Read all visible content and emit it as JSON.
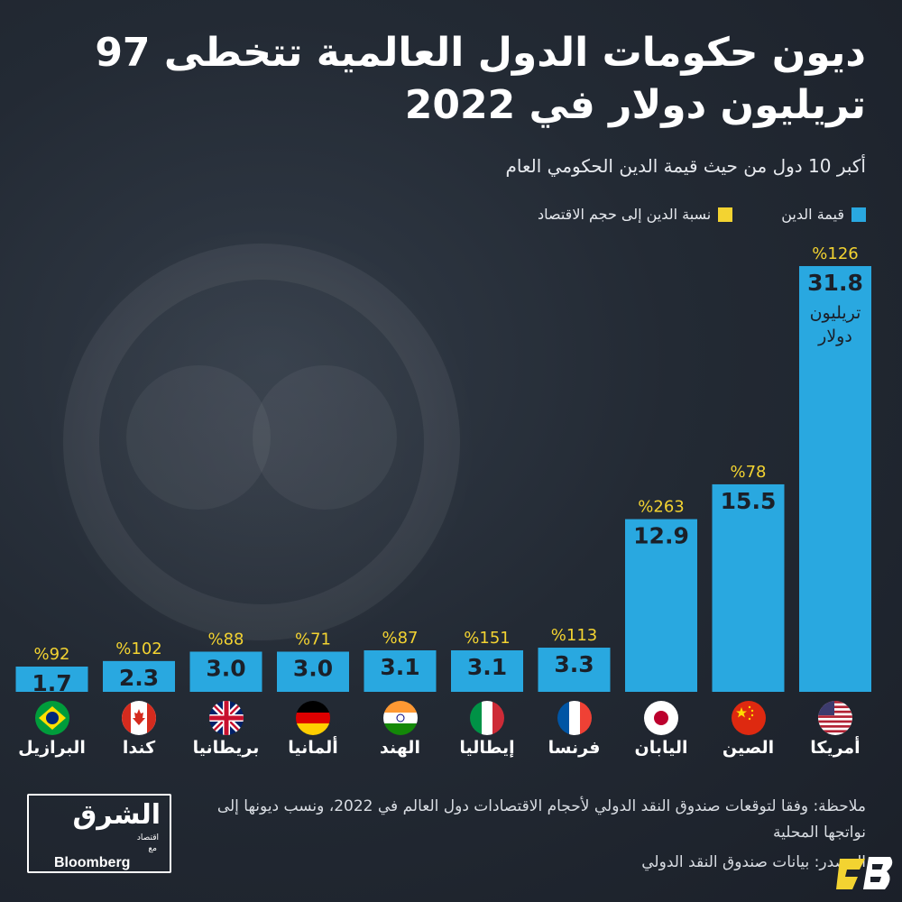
{
  "colors": {
    "bar": "#29a8e0",
    "ratio_text": "#f3d331",
    "value_text": "#1b2029",
    "legend_debt": "#29a8e0",
    "legend_ratio": "#f3d331"
  },
  "title": "ديون حكومات الدول العالمية تتخطى 97 تريليون دولار في 2022",
  "subtitle": "أكبر 10 دول من حيث قيمة الدين الحكومي العام",
  "legend": {
    "debt_value": "قيمة الدين",
    "debt_ratio": "نسبة الدين إلى حجم الاقتصاد"
  },
  "chart_data": {
    "type": "bar",
    "title": "ديون حكومات الدول العالمية تتخطى 97 تريليون دولار في 2022",
    "subtitle": "أكبر 10 دول من حيث قيمة الدين الحكومي العام",
    "categories": [
      "أمريكا",
      "الصين",
      "اليابان",
      "فرنسا",
      "إيطاليا",
      "الهند",
      "ألمانيا",
      "بريطانيا",
      "كندا",
      "البرازيل"
    ],
    "flags": [
      "usa-flag-icon",
      "china-flag-icon",
      "japan-flag-icon",
      "france-flag-icon",
      "italy-flag-icon",
      "india-flag-icon",
      "germany-flag-icon",
      "uk-flag-icon",
      "canada-flag-icon",
      "brazil-flag-icon"
    ],
    "value_labels": [
      "31.8",
      "15.5",
      "12.9",
      "3.3",
      "3.1",
      "3.1",
      "3.0",
      "3.0",
      "2.3",
      "1.7"
    ],
    "ratio_labels": [
      "%126",
      "%78",
      "%263",
      "%113",
      "%151",
      "%87",
      "%71",
      "%88",
      "%102",
      "%92"
    ],
    "series": [
      {
        "name": "قيمة الدين",
        "values": [
          31.8,
          15.5,
          12.9,
          3.3,
          3.1,
          3.1,
          3.0,
          3.0,
          2.3,
          1.7
        ]
      },
      {
        "name": "نسبة الدين إلى حجم الاقتصاد",
        "values": [
          126,
          78,
          263,
          113,
          151,
          87,
          71,
          88,
          102,
          92
        ]
      }
    ],
    "unit_label": "تريليون دولار",
    "ylim": [
      0,
      31.8
    ],
    "grid": false,
    "legend_position": "top-right"
  },
  "note": "ملاحظة: وفقا لتوقعات صندوق النقد الدولي لأحجام الاقتصادات دول العالم في 2022، ونسب ديونها إلى نواتجها المحلية",
  "source": "المصدر: بيانات صندوق النقد الدولي",
  "logo": {
    "arabic": "الشرق",
    "sub": "اقتصاد",
    "with": "مع",
    "bloomberg": "Bloomberg"
  }
}
